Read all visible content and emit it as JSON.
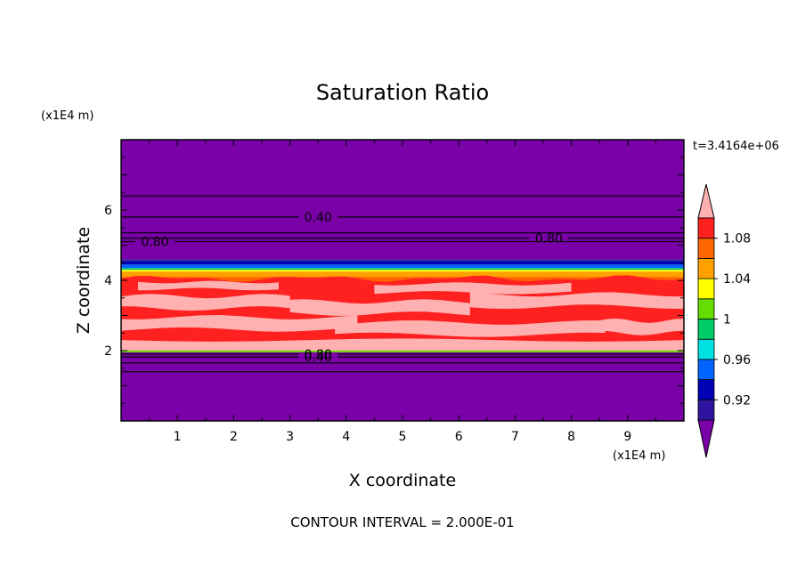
{
  "chart_data": {
    "type": "contour",
    "title": "Saturation Ratio",
    "xlabel": "X coordinate",
    "ylabel": "Z coordinate",
    "x_unit": "(x1E4 m)",
    "y_unit": "(x1E4 m)",
    "time_label": "t=3.4164e+06",
    "footer": "CONTOUR INTERVAL = 2.000E-01",
    "xlim": [
      0,
      10
    ],
    "ylim": [
      0,
      8
    ],
    "x_ticks": [
      1,
      2,
      3,
      4,
      5,
      6,
      7,
      8,
      9
    ],
    "y_ticks": [
      2,
      4,
      6
    ],
    "colorbar": {
      "levels": [
        0.92,
        0.94,
        0.96,
        0.98,
        1.0,
        1.02,
        1.04,
        1.06,
        1.08,
        1.1
      ],
      "labels": [
        "0.92",
        "0.96",
        "1",
        "1.04",
        "1.08"
      ],
      "colors": [
        "#7a00a8",
        "#2e149e",
        "#0000b4",
        "#0064ff",
        "#00e0e0",
        "#00cc66",
        "#66dd00",
        "#ffff00",
        "#ffa000",
        "#ff6600",
        "#ff2020",
        "#ffb0b0"
      ]
    },
    "bands": [
      {
        "z0": 0.0,
        "z1": 1.95,
        "color": "#7a00a8"
      },
      {
        "z0": 1.95,
        "z1": 2.0,
        "color": "#66dd00"
      },
      {
        "z0": 2.0,
        "z1": 2.25,
        "color": "#ffb0b0"
      },
      {
        "z0": 2.25,
        "z1": 3.9,
        "color": "#ff2020"
      },
      {
        "z0": 3.9,
        "z1": 4.1,
        "color": "#ff6600"
      },
      {
        "z0": 4.1,
        "z1": 4.25,
        "color": "#ffa000"
      },
      {
        "z0": 4.25,
        "z1": 4.3,
        "color": "#ffff00"
      },
      {
        "z0": 4.3,
        "z1": 4.35,
        "color": "#00cc66"
      },
      {
        "z0": 4.35,
        "z1": 4.45,
        "color": "#0064ff"
      },
      {
        "z0": 4.45,
        "z1": 4.55,
        "color": "#0000b4"
      },
      {
        "z0": 4.55,
        "z1": 4.6,
        "color": "#2e149e"
      },
      {
        "z0": 4.6,
        "z1": 8.0,
        "color": "#7a00a8"
      }
    ],
    "pink_patches": [
      {
        "x0": 0.0,
        "x1": 10.0,
        "z0": 2.05,
        "z1": 2.3
      },
      {
        "x0": 0.0,
        "x1": 4.2,
        "z0": 2.6,
        "z1": 2.95
      },
      {
        "x0": 3.8,
        "x1": 8.6,
        "z0": 2.45,
        "z1": 2.8
      },
      {
        "x0": 0.0,
        "x1": 3.0,
        "z0": 3.2,
        "z1": 3.55
      },
      {
        "x0": 3.0,
        "x1": 6.2,
        "z0": 3.05,
        "z1": 3.4
      },
      {
        "x0": 6.2,
        "x1": 10.0,
        "z0": 3.25,
        "z1": 3.6
      },
      {
        "x0": 0.3,
        "x1": 2.8,
        "z0": 3.75,
        "z1": 3.95
      },
      {
        "x0": 4.5,
        "x1": 8.0,
        "z0": 3.65,
        "z1": 3.9
      },
      {
        "x0": 8.2,
        "x1": 10.0,
        "z0": 2.5,
        "z1": 2.85
      }
    ],
    "contours": [
      {
        "z": 1.4,
        "label": ""
      },
      {
        "z": 1.65,
        "label": ""
      },
      {
        "z": 1.82,
        "label": "0.40",
        "label_x": 3.5
      },
      {
        "z": 1.9,
        "label": "0.80",
        "label_x": 3.5
      },
      {
        "z": 5.1,
        "label": "0.80",
        "label_x": 0.6
      },
      {
        "z": 5.2,
        "label": "0.80",
        "label_x": 7.6
      },
      {
        "z": 5.35,
        "label": ""
      },
      {
        "z": 5.8,
        "label": "0.40",
        "label_x": 3.5
      },
      {
        "z": 6.4,
        "label": ""
      }
    ]
  }
}
